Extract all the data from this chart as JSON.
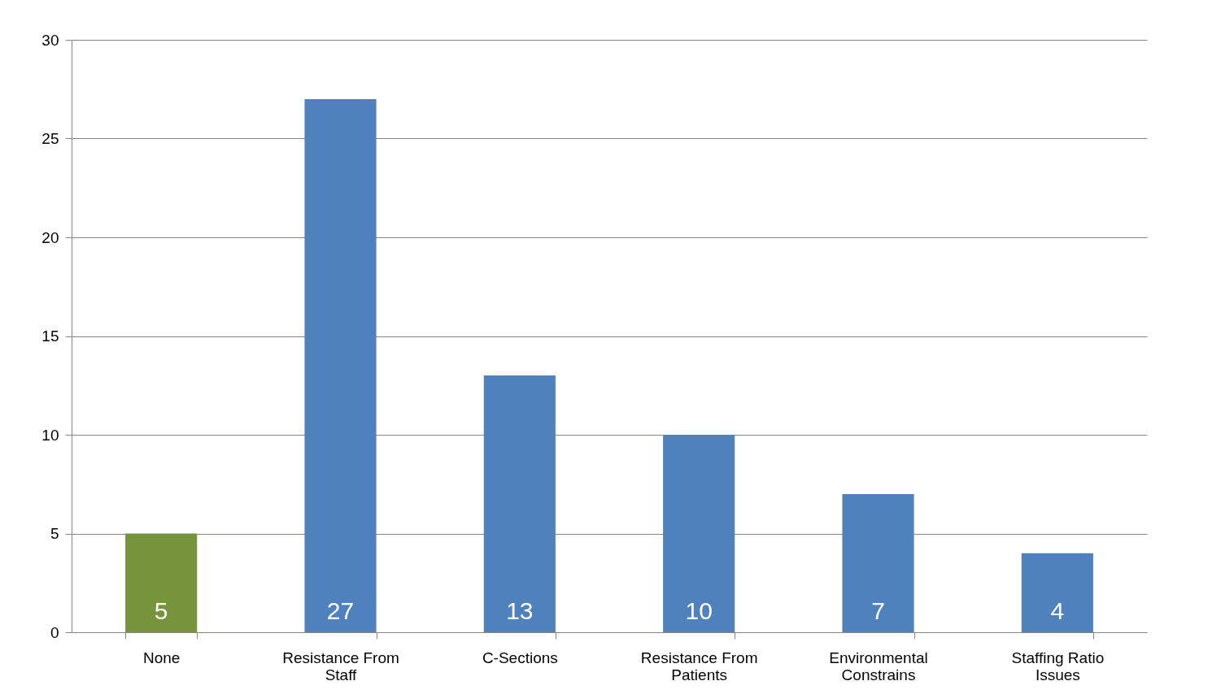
{
  "chart_data": {
    "type": "bar",
    "categories": [
      "None",
      "Resistance From Staff",
      "C-Sections",
      "Resistance From Patients",
      "Environmental Constrains",
      "Staffing Ratio Issues"
    ],
    "values": [
      5,
      27,
      13,
      10,
      7,
      4
    ],
    "colors": [
      "#77933c",
      "#4f81bd",
      "#4f81bd",
      "#4f81bd",
      "#4f81bd",
      "#4f81bd"
    ],
    "ylim": [
      0,
      30
    ],
    "yticks": [
      0,
      5,
      10,
      15,
      20,
      25,
      30
    ],
    "grid": "y",
    "data_labels": true
  }
}
